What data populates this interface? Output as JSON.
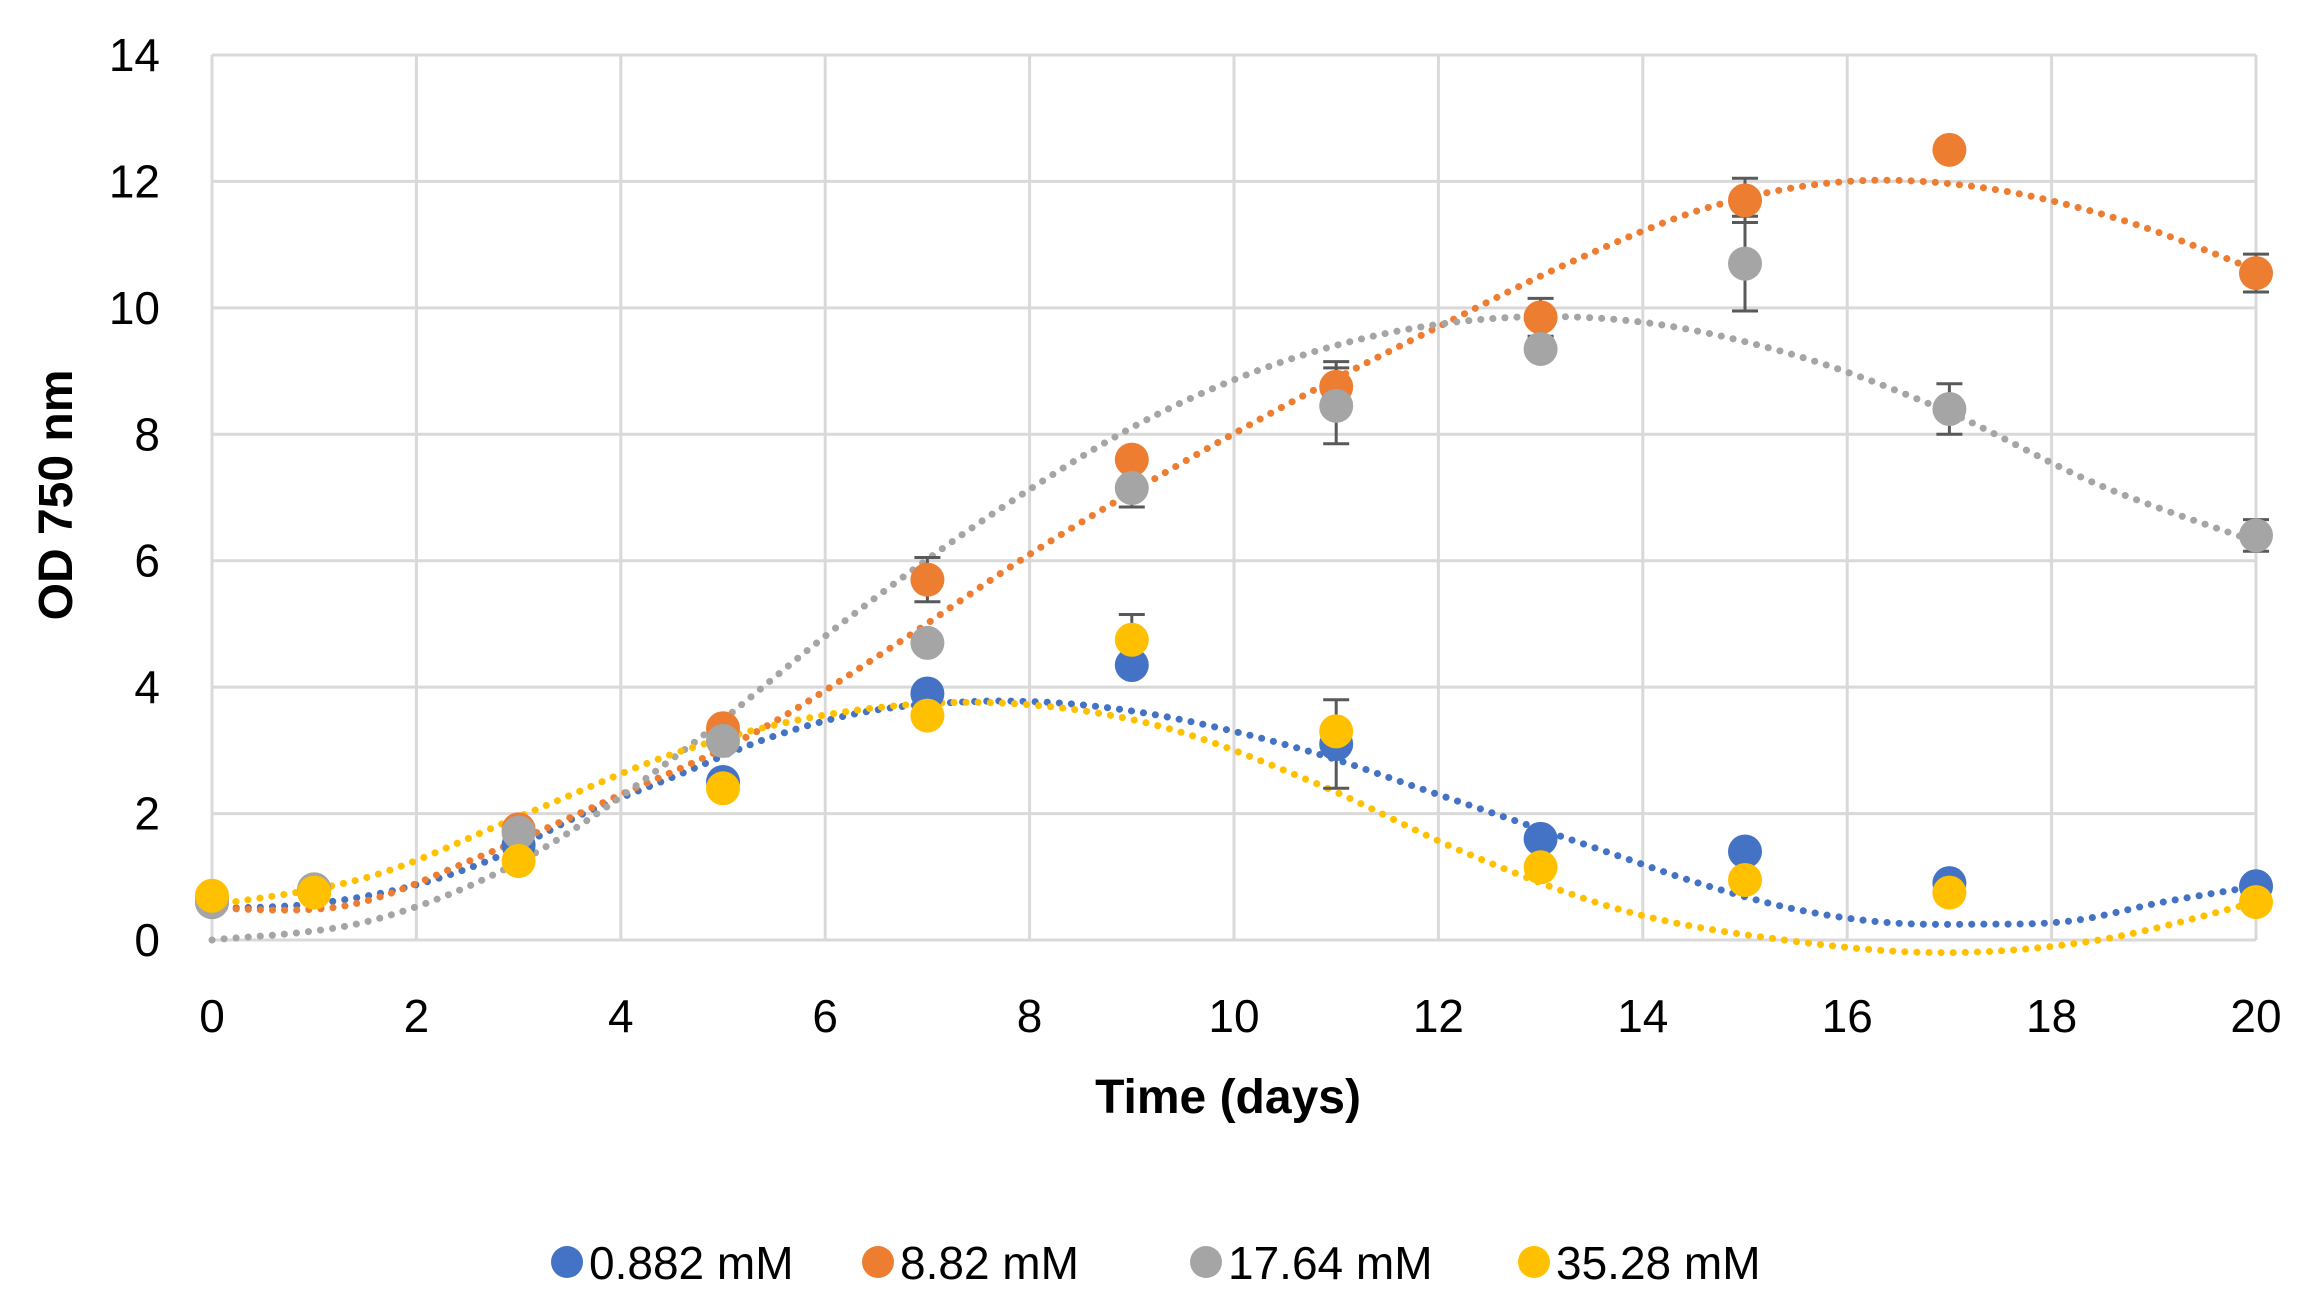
{
  "chart_data": {
    "type": "scatter",
    "title": "",
    "xlabel": "Time (days)",
    "ylabel": "OD 750 nm",
    "xlim": [
      0,
      20
    ],
    "ylim": [
      0,
      14
    ],
    "xticks": [
      0,
      2,
      4,
      6,
      8,
      10,
      12,
      14,
      16,
      18,
      20
    ],
    "yticks": [
      0,
      2,
      4,
      6,
      8,
      10,
      12,
      14
    ],
    "grid": true,
    "legend_position": "bottom",
    "trendline": "polynomial (dotted)",
    "series": [
      {
        "name": "0.882 mM",
        "color": "#4472C4",
        "x": [
          0,
          1,
          3,
          5,
          7,
          9,
          11,
          13,
          15,
          17,
          20
        ],
        "y": [
          0.6,
          0.8,
          1.5,
          2.5,
          3.9,
          4.35,
          3.1,
          1.6,
          1.4,
          0.9,
          0.85
        ],
        "error": [
          0,
          0,
          0,
          0,
          0,
          0,
          0.7,
          0,
          0,
          0,
          0
        ],
        "fit": [
          0.5,
          0.56,
          0.8,
          1.27,
          2.0,
          2.6,
          3.2,
          3.6,
          3.76,
          3.76,
          3.6,
          3.3,
          2.9,
          2.4,
          1.9,
          1.4,
          0.9,
          0.5,
          0.28,
          0.25,
          0.3,
          0.6,
          0.85
        ]
      },
      {
        "name": "8.82 mM",
        "color": "#ED7D31",
        "x": [
          0,
          1,
          3,
          5,
          7,
          9,
          11,
          13,
          15,
          17,
          20
        ],
        "y": [
          0.65,
          0.8,
          1.75,
          3.35,
          5.7,
          7.6,
          8.75,
          9.85,
          11.7,
          12.5,
          10.55
        ],
        "error": [
          0,
          0,
          0,
          0,
          0.35,
          0,
          0.4,
          0.3,
          0.35,
          0,
          0.3
        ],
        "fit": [
          0.5,
          0.55,
          1.35,
          2.3,
          3.3,
          4.65,
          6.1,
          7.4,
          8.6,
          9.7,
          10.75,
          11.6,
          12.0,
          11.9,
          11.4,
          10.6
        ]
      },
      {
        "name": "17.64 mM",
        "color": "#A5A5A5",
        "x": [
          0,
          1,
          3,
          5,
          7,
          9,
          11,
          13,
          15,
          17,
          20
        ],
        "y": [
          0.6,
          0.8,
          1.7,
          3.15,
          4.7,
          7.15,
          8.45,
          9.35,
          10.7,
          8.4,
          6.4
        ],
        "error": [
          0,
          0,
          0,
          0,
          0,
          0.3,
          0.6,
          0,
          0.75,
          0.4,
          0.25
        ],
        "fit": [
          0.0,
          0.3,
          1.3,
          3.0,
          5.0,
          6.8,
          8.3,
          9.3,
          9.8,
          9.8,
          9.3,
          8.4,
          7.2,
          6.3
        ]
      },
      {
        "name": "35.28 mM",
        "color": "#FFC000",
        "x": [
          0,
          1,
          3,
          5,
          7,
          9,
          11,
          13,
          15,
          17,
          20
        ],
        "y": [
          0.7,
          0.75,
          1.25,
          2.4,
          3.55,
          4.75,
          3.3,
          1.15,
          0.95,
          0.75,
          0.6
        ],
        "error": [
          0,
          0,
          0,
          0,
          0,
          0.4,
          0,
          0,
          0,
          0,
          0
        ],
        "fit": [
          0.55,
          1.0,
          2.0,
          3.0,
          3.6,
          3.75,
          3.4,
          2.5,
          1.35,
          0.45,
          0.0,
          -0.2,
          0.0,
          0.6
        ]
      }
    ]
  }
}
